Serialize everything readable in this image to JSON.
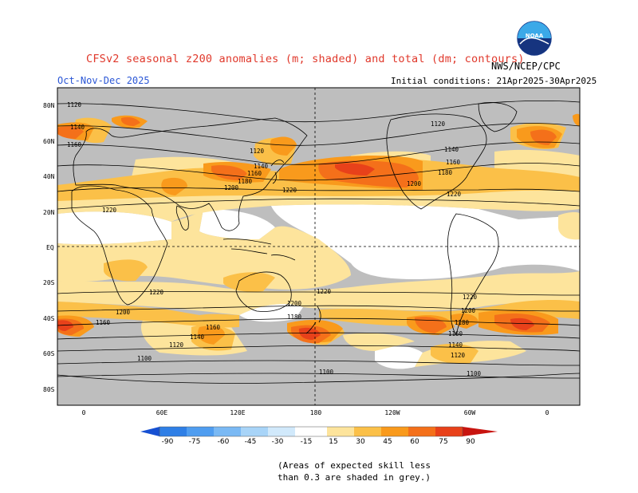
{
  "header": {
    "title": "CFSv2 seasonal z200 anomalies (m; shaded) and total (dm; contours)",
    "period": "Oct-Nov-Dec 2025",
    "agency": "NWS/NCEP/CPC",
    "initial_conditions": "Initial conditions: 21Apr2025-30Apr2025",
    "logo_text": "NOAA"
  },
  "axes": {
    "lat_labels": [
      "80N",
      "60N",
      "40N",
      "20N",
      "EQ",
      "20S",
      "40S",
      "60S",
      "80S"
    ],
    "lon_labels": [
      "0",
      "60E",
      "120E",
      "180",
      "120W",
      "60W",
      "0"
    ]
  },
  "contour_labels": {
    "values": [
      "1120",
      "1140",
      "1160",
      "1180",
      "1200",
      "1220",
      "1100"
    ]
  },
  "colorbar": {
    "labels": [
      "-90",
      "-75",
      "-60",
      "-45",
      "-30",
      "-15",
      "15",
      "30",
      "45",
      "60",
      "75",
      "90"
    ],
    "colors": [
      "#1650d2",
      "#2f7fe6",
      "#4f9df0",
      "#7ab9f4",
      "#a8d4f8",
      "#d1e9fb",
      "#ffffff",
      "#fde49c",
      "#fbc048",
      "#f99a1c",
      "#f4701a",
      "#e8411a",
      "#c8140f"
    ]
  },
  "footnote": {
    "line1": "(Areas of expected skill less",
    "line2": "than 0.3 are shaded in grey.)"
  },
  "colors": {
    "grey_low_skill": "#bebebe",
    "title": "#e0382b",
    "period": "#2b57d6"
  }
}
